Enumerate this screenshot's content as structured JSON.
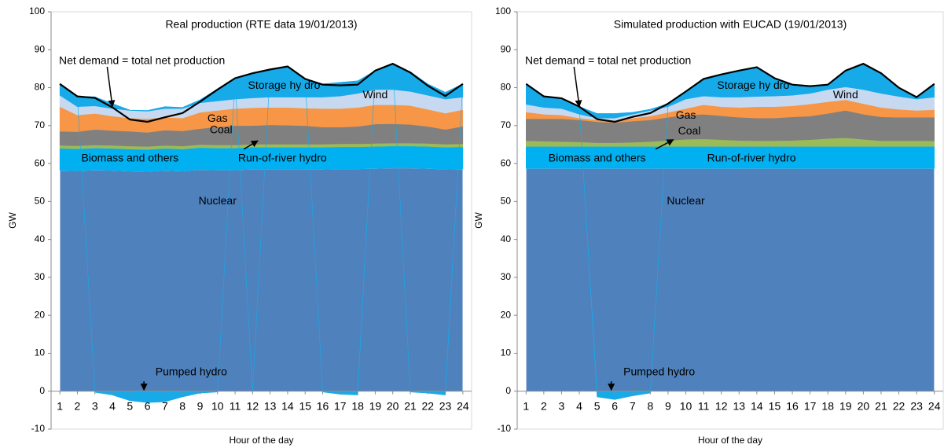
{
  "chart_data": [
    {
      "type": "area",
      "stacked": true,
      "title": "Real production (RTE data 19/01/2013)",
      "xlabel": "Hour of the day",
      "ylabel": "GW",
      "x": [
        1,
        2,
        3,
        4,
        5,
        6,
        7,
        8,
        9,
        10,
        11,
        12,
        13,
        14,
        15,
        16,
        17,
        18,
        19,
        20,
        21,
        22,
        23,
        24
      ],
      "ylim": [
        -10,
        100
      ],
      "yticks": [
        -10,
        0,
        10,
        20,
        30,
        40,
        50,
        60,
        70,
        80,
        90,
        100
      ],
      "series": [
        {
          "name": "Nuclear",
          "color": "#4f81bd",
          "values": [
            58.2,
            58.1,
            58.3,
            58.2,
            58,
            57.9,
            58.2,
            58,
            58.4,
            58.3,
            58.3,
            58.5,
            58.5,
            58.5,
            58.5,
            58.5,
            58.6,
            58.6,
            58.7,
            58.8,
            58.8,
            58.7,
            58.5,
            58.6
          ]
        },
        {
          "name": "Run-of-river hydro",
          "color": "#00b0f0",
          "values": [
            5.8,
            5.8,
            5.8,
            5.8,
            5.8,
            5.8,
            5.8,
            5.8,
            5.8,
            5.8,
            5.8,
            5.8,
            5.8,
            5.8,
            5.8,
            5.8,
            5.8,
            5.8,
            5.8,
            5.8,
            5.8,
            5.8,
            5.8,
            5.8
          ]
        },
        {
          "name": "Biomass and others",
          "color": "#9bbb59",
          "values": [
            0.8,
            0.8,
            0.8,
            0.8,
            0.8,
            0.8,
            0.8,
            0.8,
            0.8,
            0.8,
            0.8,
            0.8,
            0.8,
            0.8,
            0.8,
            0.8,
            0.8,
            0.8,
            0.8,
            0.8,
            0.8,
            0.8,
            0.8,
            0.8
          ]
        },
        {
          "name": "Coal",
          "color": "#808080",
          "values": [
            3.7,
            3.7,
            4.1,
            3.9,
            3.9,
            3.7,
            4,
            4,
            4.2,
            4.8,
            5.1,
            4.9,
            5.1,
            5,
            4.9,
            4.5,
            4.4,
            4.6,
            5.1,
            5.1,
            4.9,
            4.5,
            3.9,
            4.6
          ]
        },
        {
          "name": "Gas",
          "color": "#f79646",
          "values": [
            6.5,
            4.4,
            4.2,
            3.8,
            3.5,
            3.6,
            3.4,
            3.4,
            4.3,
            4.3,
            4.5,
            4.7,
            4.6,
            4.7,
            4.6,
            4.9,
            4.9,
            5,
            5.1,
            5,
            5,
            4.5,
            4.3,
            4.4
          ]
        },
        {
          "name": "Wind",
          "color": "#c6d9f1",
          "values": [
            3,
            2.2,
            2,
            2,
            2,
            2,
            2.3,
            2.5,
            2.5,
            2.5,
            2.5,
            2.6,
            2.7,
            2.7,
            2.9,
            3,
            3.3,
            3.7,
            4,
            4,
            3.7,
            3.7,
            3.7,
            3.3
          ]
        },
        {
          "name": "Storage hy dro",
          "color": "#17aae8",
          "values": [
            3,
            2.7,
            2.4,
            1.3,
            0.1,
            0.2,
            0.5,
            0.3,
            0.8,
            3.2,
            5.5,
            6.7,
            7.3,
            8.1,
            4.8,
            3.5,
            3.6,
            3.3,
            5,
            6.8,
            5.2,
            3,
            1.8,
            3.5
          ]
        },
        {
          "name": "Pumped hydro",
          "color": "#17aae8",
          "values": [
            0,
            0,
            -0.3,
            -1,
            -2.5,
            -3,
            -2.8,
            -1.5,
            -0.5,
            -0.2,
            0,
            -0.2,
            0,
            0,
            0,
            -0.2,
            -0.8,
            -1,
            0,
            0,
            -0.2,
            -0.5,
            -1,
            0
          ]
        }
      ],
      "net_demand": {
        "name": "Net demand = total net production",
        "color": "#000000",
        "values": [
          81,
          77.7,
          77.3,
          74.8,
          71.6,
          71,
          72.2,
          73.3,
          76.3,
          79.5,
          82.5,
          83.8,
          84.8,
          85.6,
          82.3,
          80.8,
          80.6,
          80.8,
          84.5,
          86.3,
          84,
          80.5,
          77.8,
          81
        ]
      }
    },
    {
      "type": "area",
      "stacked": true,
      "title": "Simulated production with EUCAD (19/01/2013)",
      "xlabel": "Hour of the day",
      "ylabel": "GW",
      "x": [
        1,
        2,
        3,
        4,
        5,
        6,
        7,
        8,
        9,
        10,
        11,
        12,
        13,
        14,
        15,
        16,
        17,
        18,
        19,
        20,
        21,
        22,
        23,
        24
      ],
      "ylim": [
        -10,
        100
      ],
      "yticks": [
        -10,
        0,
        10,
        20,
        30,
        40,
        50,
        60,
        70,
        80,
        90,
        100
      ],
      "series": [
        {
          "name": "Nuclear",
          "color": "#4f81bd",
          "values": [
            58.7,
            58.7,
            58.7,
            58.7,
            58.7,
            58.7,
            58.7,
            58.7,
            58.7,
            58.7,
            58.7,
            58.7,
            58.7,
            58.7,
            58.7,
            58.7,
            58.7,
            58.7,
            58.7,
            58.7,
            58.7,
            58.7,
            58.7,
            58.7
          ]
        },
        {
          "name": "Run-of-river hydro",
          "color": "#00b0f0",
          "values": [
            5.8,
            5.8,
            5.8,
            5.8,
            5.8,
            5.8,
            5.8,
            5.8,
            5.8,
            5.8,
            5.8,
            5.8,
            5.8,
            5.8,
            5.8,
            5.8,
            5.8,
            5.8,
            5.8,
            5.8,
            5.8,
            5.8,
            5.8,
            5.8
          ]
        },
        {
          "name": "Biomass and others",
          "color": "#9bbb59",
          "values": [
            1.5,
            1.4,
            1.3,
            1.2,
            1,
            1,
            1.1,
            1.3,
            1.6,
            1.9,
            2,
            1.8,
            1.6,
            1.5,
            1.5,
            1.6,
            1.8,
            2.1,
            2.3,
            1.9,
            1.5,
            1.5,
            1.5,
            1.5
          ]
        },
        {
          "name": "Coal",
          "color": "#808080",
          "values": [
            5.8,
            5.9,
            6,
            5.8,
            5.5,
            5.3,
            5.6,
            5.7,
            6.1,
            6.4,
            6.5,
            6.3,
            6.1,
            6,
            6,
            6.2,
            6.2,
            6.6,
            7.2,
            6.6,
            6.3,
            6.2,
            6.2,
            6.2
          ]
        },
        {
          "name": "Gas",
          "color": "#f79646",
          "values": [
            1.8,
            1.2,
            1,
            0.5,
            0.5,
            0.2,
            0.8,
            1,
            1.3,
            1.7,
            2.5,
            2.4,
            2.6,
            3,
            3,
            2.9,
            3.2,
            3.1,
            2.8,
            2.8,
            2.5,
            2.1,
            1.8,
            2
          ]
        },
        {
          "name": "Wind",
          "color": "#c6d9f1",
          "values": [
            2,
            1.8,
            1.7,
            1,
            0.5,
            1,
            1,
            1.5,
            1.5,
            2.5,
            2.3,
            2.5,
            2.7,
            2.7,
            2.8,
            2.8,
            2.8,
            3.2,
            3.4,
            3.7,
            3.7,
            3.4,
            3,
            3.3
          ]
        },
        {
          "name": "Storage hy dro",
          "color": "#17aae8",
          "values": [
            5.2,
            2.7,
            2.7,
            2,
            1.2,
            1.2,
            0.5,
            0.3,
            0.8,
            2,
            4.5,
            6,
            7,
            7.7,
            4.7,
            2.8,
            1.9,
            1.3,
            4.3,
            6.8,
            5.3,
            2.3,
            0.5,
            3.5
          ]
        },
        {
          "name": "Pumped hydro",
          "color": "#17aae8",
          "values": [
            0,
            0,
            0,
            0,
            -1.5,
            -2.2,
            -1.2,
            -0.5,
            0,
            0,
            0,
            0,
            0,
            0,
            0,
            0,
            0,
            0,
            0,
            0,
            0,
            0,
            0,
            0
          ]
        }
      ],
      "net_demand": {
        "name": "Net demand = total net production",
        "color": "#000000",
        "values": [
          81,
          77.7,
          77.2,
          75,
          71.7,
          71,
          72.3,
          73.3,
          75.8,
          79,
          82.3,
          83.5,
          84.5,
          85.4,
          82.5,
          80.8,
          80.4,
          80.8,
          84.5,
          86.3,
          83.8,
          80,
          77.5,
          81
        ]
      }
    }
  ]
}
